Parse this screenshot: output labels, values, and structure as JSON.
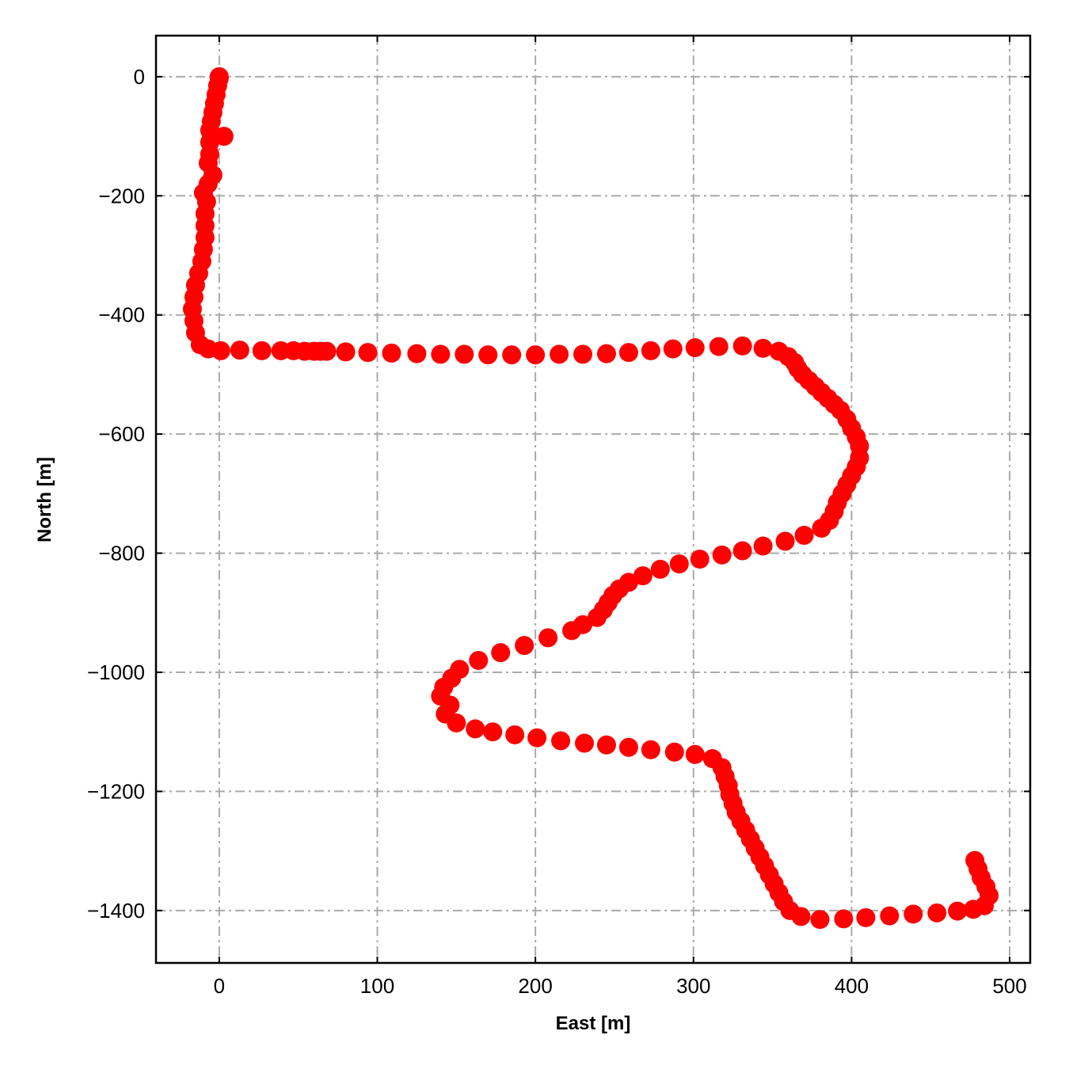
{
  "chart_data": {
    "type": "scatter",
    "xlabel": "East [m]",
    "ylabel": "North [m]",
    "color": "#ff0000",
    "grid": true,
    "xlim": [
      -40,
      513
    ],
    "ylim": [
      -1488,
      69
    ],
    "xticks": [
      0,
      100,
      200,
      300,
      400,
      500
    ],
    "yticks": [
      0,
      {
        "value": -200,
        "label": "−200"
      },
      {
        "value": -400,
        "label": "−400"
      },
      {
        "value": -600,
        "label": "−600"
      },
      {
        "value": -800,
        "label": "−800"
      },
      {
        "value": -1000,
        "label": "−1000"
      },
      {
        "value": -1200,
        "label": "−1200"
      },
      {
        "value": -1400,
        "label": "−1400"
      }
    ],
    "x": [
      0,
      0,
      -1,
      -2,
      -3,
      -4,
      -5,
      -6,
      3,
      -6,
      -6,
      -7,
      -4,
      -7,
      -10,
      -8,
      -9,
      -9,
      -9,
      -10,
      -11,
      -13,
      -15,
      -16,
      -17,
      -16,
      -15,
      -12,
      -7,
      1,
      13,
      27,
      39,
      47,
      54,
      60,
      64,
      68,
      80,
      94,
      109,
      125,
      140,
      155,
      170,
      185,
      200,
      215,
      230,
      245,
      259,
      273,
      287,
      301,
      316,
      331,
      344,
      354,
      360,
      364,
      366,
      369,
      373,
      377,
      381,
      385,
      389,
      393,
      397,
      400,
      403,
      405,
      405,
      403,
      400,
      397,
      394,
      391,
      389,
      386,
      381,
      370,
      358,
      344,
      331,
      318,
      304,
      291,
      279,
      268,
      259,
      253,
      249,
      246,
      243,
      239,
      230,
      223,
      208,
      193,
      178,
      164,
      152,
      147,
      142,
      140,
      146,
      143,
      150,
      162,
      173,
      187,
      201,
      216,
      231,
      245,
      259,
      273,
      288,
      301,
      312,
      318,
      320,
      322,
      323,
      325,
      327,
      330,
      333,
      336,
      339,
      342,
      345,
      348,
      351,
      354,
      357,
      361,
      368,
      380,
      395,
      409,
      424,
      439,
      454,
      467,
      477,
      484,
      487,
      485,
      482,
      480,
      478
    ],
    "values": [
      0,
      -3,
      -15,
      -30,
      -45,
      -60,
      -75,
      -90,
      -100,
      -110,
      -130,
      -145,
      -165,
      -180,
      -195,
      -210,
      -230,
      -250,
      -270,
      -290,
      -310,
      -330,
      -350,
      -370,
      -390,
      -410,
      -430,
      -450,
      -457,
      -460,
      -459,
      -460,
      -460,
      -460,
      -461,
      -461,
      -461,
      -461,
      -462,
      -463,
      -464,
      -465,
      -466,
      -466,
      -467,
      -467,
      -467,
      -466,
      -466,
      -465,
      -463,
      -460,
      -457,
      -455,
      -453,
      -452,
      -456,
      -461,
      -470,
      -480,
      -490,
      -500,
      -510,
      -520,
      -530,
      -540,
      -550,
      -560,
      -575,
      -590,
      -605,
      -620,
      -640,
      -655,
      -670,
      -685,
      -700,
      -715,
      -730,
      -745,
      -758,
      -770,
      -780,
      -788,
      -796,
      -803,
      -810,
      -818,
      -827,
      -838,
      -849,
      -860,
      -871,
      -883,
      -895,
      -908,
      -920,
      -930,
      -942,
      -955,
      -967,
      -980,
      -995,
      -1010,
      -1025,
      -1040,
      -1055,
      -1070,
      -1085,
      -1095,
      -1100,
      -1105,
      -1110,
      -1115,
      -1119,
      -1122,
      -1126,
      -1130,
      -1134,
      -1138,
      -1145,
      -1160,
      -1175,
      -1190,
      -1205,
      -1220,
      -1235,
      -1250,
      -1265,
      -1280,
      -1295,
      -1310,
      -1325,
      -1340,
      -1355,
      -1370,
      -1385,
      -1400,
      -1410,
      -1415,
      -1414,
      -1412,
      -1409,
      -1406,
      -1404,
      -1401,
      -1398,
      -1392,
      -1375,
      -1360,
      -1345,
      -1330,
      -1316
    ]
  }
}
